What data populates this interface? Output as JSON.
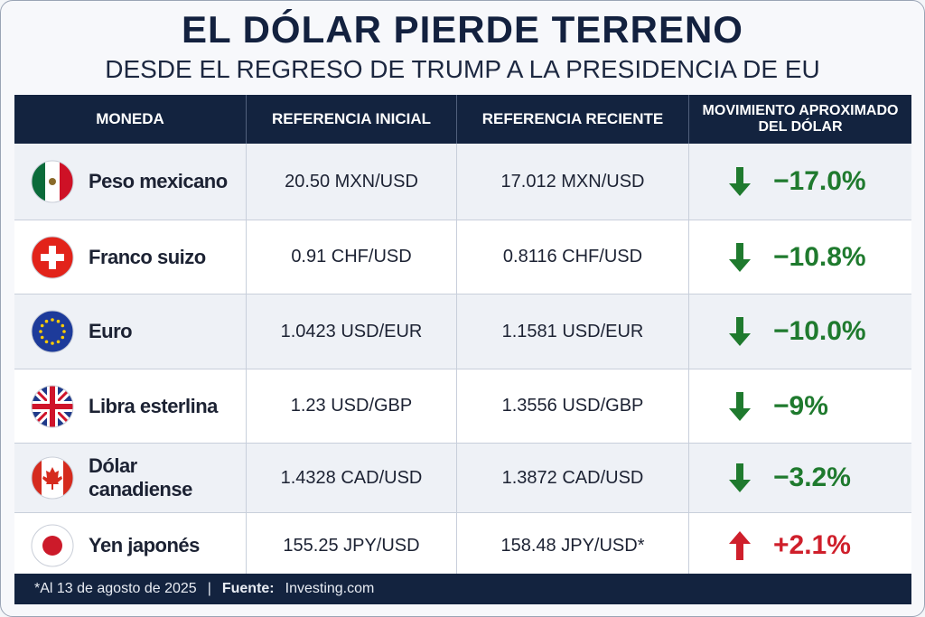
{
  "header": {
    "title": "EL DÓLAR PIERDE TERRENO",
    "subtitle": "DESDE EL REGRESO DE TRUMP A LA PRESIDENCIA DE EU"
  },
  "table": {
    "columns": [
      "MONEDA",
      "REFERENCIA INICIAL",
      "REFERENCIA RECIENTE",
      "MOVIMIENTO APROXIMADO DEL DÓLAR"
    ],
    "rows": [
      [
        "Peso mexicano",
        "20.50 MXN/USD",
        "17.012 MXN/USD",
        "−17.0%"
      ],
      [
        "Franco suizo",
        "0.91 CHF/USD",
        "0.8116 CHF/USD",
        "−10.8%"
      ],
      [
        "Euro",
        "1.0423 USD/EUR",
        "1.1581 USD/EUR",
        "−10.0%"
      ],
      [
        "Libra esterlina",
        "1.23 USD/GBP",
        "1.3556 USD/GBP",
        "−9%"
      ],
      [
        "Dólar canadiense",
        "1.4328 CAD/USD",
        "1.3872 CAD/USD",
        "−3.2%"
      ],
      [
        "Yen japonés",
        "155.25 JPY/USD",
        "158.48 JPY/USD*",
        "+2.1%"
      ]
    ]
  },
  "footer": {
    "note": "*Al 13 de agosto de 2025",
    "separator": "|",
    "source_label": "Fuente:",
    "source": "Investing.com"
  }
}
